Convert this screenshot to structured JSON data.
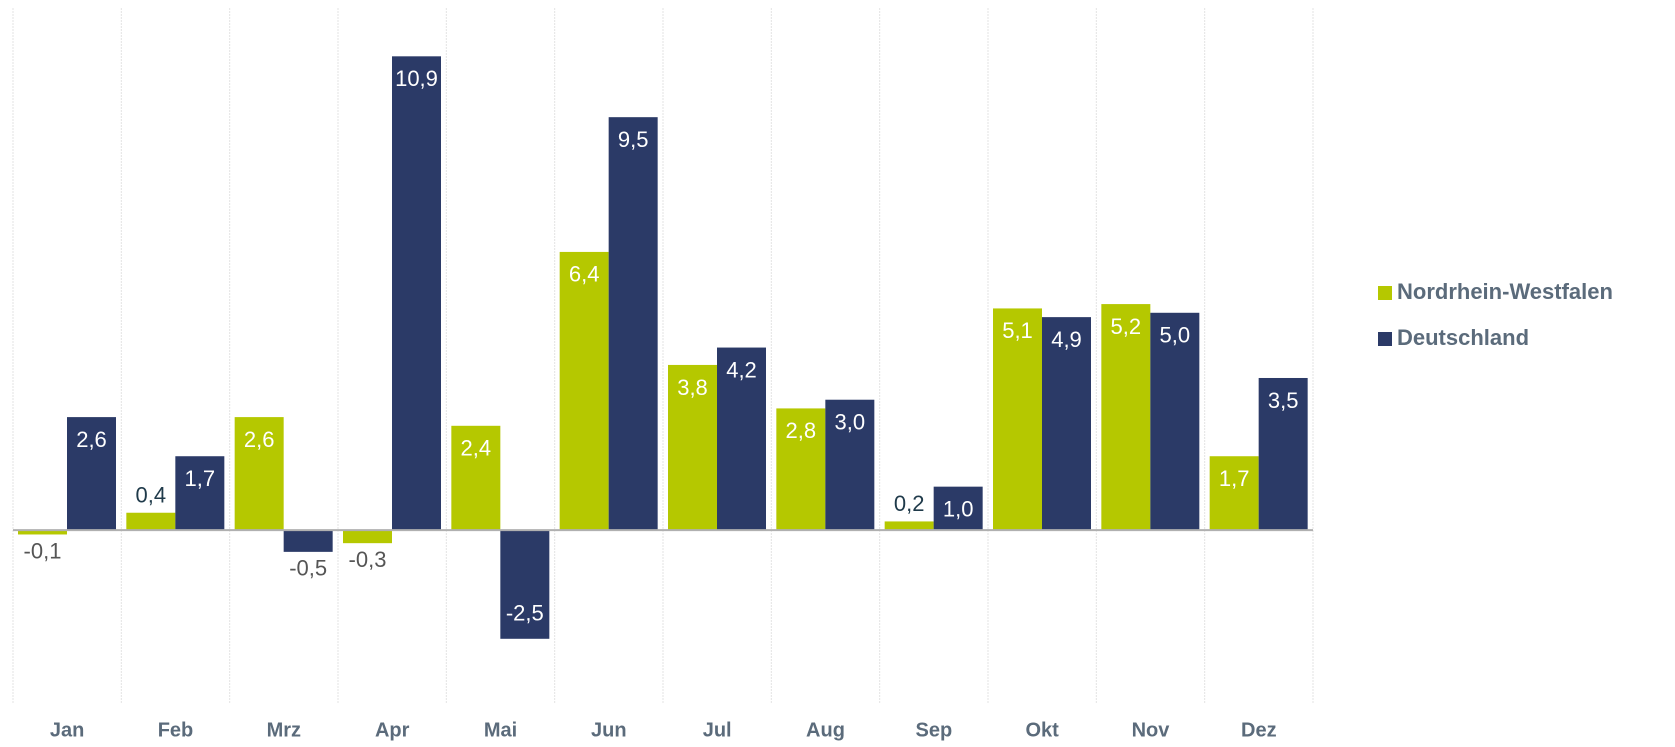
{
  "chart_data": {
    "type": "bar",
    "categories": [
      "Jan",
      "Feb",
      "Mrz",
      "Apr",
      "Mai",
      "Jun",
      "Jul",
      "Aug",
      "Sep",
      "Okt",
      "Nov",
      "Dez"
    ],
    "series": [
      {
        "name": "Nordrhein-Westfalen",
        "color": "#b5c800",
        "values": [
          -0.1,
          0.4,
          2.6,
          -0.3,
          2.4,
          6.4,
          3.8,
          2.8,
          0.2,
          5.1,
          5.2,
          1.7
        ],
        "value_labels": [
          "-0,1",
          "0,4",
          "2,6",
          "-0,3",
          "2,4",
          "6,4",
          "3,8",
          "2,8",
          "0,2",
          "5,1",
          "5,2",
          "1,7"
        ]
      },
      {
        "name": "Deutschland",
        "color": "#2b3a67",
        "values": [
          2.6,
          1.7,
          -0.5,
          10.9,
          -2.5,
          9.5,
          4.2,
          3.0,
          1.0,
          4.9,
          5.0,
          3.5
        ],
        "value_labels": [
          "2,6",
          "1,7",
          "-0,5",
          "10,9",
          "-2,5",
          "9,5",
          "4,2",
          "3,0",
          "1,0",
          "4,9",
          "5,0",
          "3,5"
        ]
      }
    ],
    "ylim": [
      -4,
      12
    ],
    "legend": "right"
  }
}
